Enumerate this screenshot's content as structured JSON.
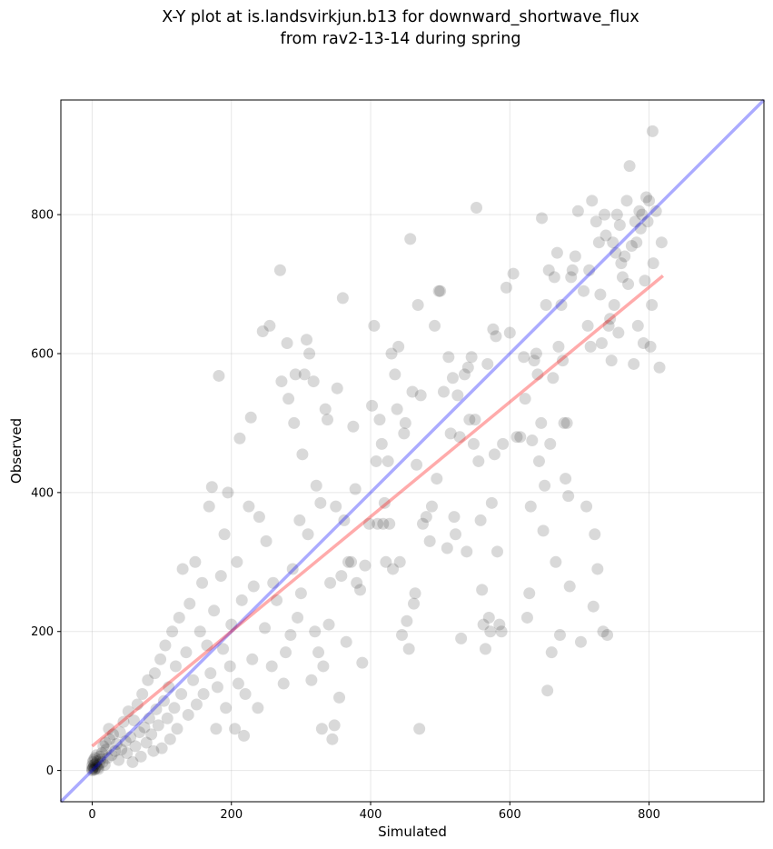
{
  "chart_data": {
    "type": "scatter",
    "title_line1": "X-Y plot at is.landsvirkjun.b13 for downward_shortwave_flux",
    "title_line2": "from rav2-13-14 during spring",
    "xlabel": "Simulated",
    "ylabel": "Observed",
    "xlim": [
      -45,
      965
    ],
    "ylim": [
      -45,
      965
    ],
    "xticks": [
      0,
      200,
      400,
      600,
      800
    ],
    "yticks": [
      0,
      200,
      400,
      600,
      800
    ],
    "grid": true,
    "identity_line": {
      "label": "1:1",
      "color": "#0000ff",
      "opacity": 0.33
    },
    "fit_line": {
      "color": "#ff0000",
      "opacity": 0.33,
      "x": [
        0,
        820
      ],
      "y": [
        35,
        712
      ]
    },
    "point_color": "#000000",
    "point_opacity": 0.15,
    "points": [
      [
        0,
        0
      ],
      [
        1,
        3
      ],
      [
        2,
        5
      ],
      [
        0,
        2
      ],
      [
        3,
        8
      ],
      [
        4,
        2
      ],
      [
        5,
        10
      ],
      [
        1,
        12
      ],
      [
        6,
        6
      ],
      [
        2,
        15
      ],
      [
        8,
        4
      ],
      [
        0,
        7
      ],
      [
        3,
        1
      ],
      [
        7,
        13
      ],
      [
        10,
        9
      ],
      [
        12,
        16
      ],
      [
        4,
        18
      ],
      [
        6,
        22
      ],
      [
        9,
        2
      ],
      [
        15,
        12
      ],
      [
        14,
        25
      ],
      [
        18,
        8
      ],
      [
        20,
        30
      ],
      [
        11,
        20
      ],
      [
        16,
        35
      ],
      [
        22,
        18
      ],
      [
        25,
        45
      ],
      [
        19,
        40
      ],
      [
        28,
        22
      ],
      [
        30,
        52
      ],
      [
        24,
        60
      ],
      [
        33,
        28
      ],
      [
        35,
        38
      ],
      [
        38,
        15
      ],
      [
        40,
        55
      ],
      [
        42,
        30
      ],
      [
        45,
        70
      ],
      [
        48,
        42
      ],
      [
        50,
        25
      ],
      [
        52,
        85
      ],
      [
        55,
        48
      ],
      [
        58,
        12
      ],
      [
        60,
        72
      ],
      [
        62,
        35
      ],
      [
        65,
        95
      ],
      [
        68,
        55
      ],
      [
        70,
        20
      ],
      [
        72,
        110
      ],
      [
        75,
        62
      ],
      [
        78,
        40
      ],
      [
        80,
        130
      ],
      [
        82,
        75
      ],
      [
        85,
        52
      ],
      [
        88,
        28
      ],
      [
        90,
        140
      ],
      [
        92,
        88
      ],
      [
        95,
        65
      ],
      [
        98,
        160
      ],
      [
        100,
        32
      ],
      [
        103,
        100
      ],
      [
        105,
        180
      ],
      [
        108,
        75
      ],
      [
        110,
        120
      ],
      [
        112,
        45
      ],
      [
        115,
        200
      ],
      [
        118,
        90
      ],
      [
        120,
        150
      ],
      [
        122,
        60
      ],
      [
        125,
        220
      ],
      [
        128,
        110
      ],
      [
        130,
        290
      ],
      [
        135,
        170
      ],
      [
        138,
        80
      ],
      [
        140,
        240
      ],
      [
        145,
        130
      ],
      [
        148,
        300
      ],
      [
        150,
        95
      ],
      [
        155,
        200
      ],
      [
        158,
        270
      ],
      [
        160,
        110
      ],
      [
        165,
        180
      ],
      [
        168,
        380
      ],
      [
        170,
        140
      ],
      [
        172,
        408
      ],
      [
        175,
        230
      ],
      [
        178,
        60
      ],
      [
        180,
        120
      ],
      [
        182,
        568
      ],
      [
        185,
        280
      ],
      [
        188,
        175
      ],
      [
        190,
        340
      ],
      [
        192,
        90
      ],
      [
        195,
        400
      ],
      [
        198,
        150
      ],
      [
        200,
        210
      ],
      [
        205,
        60
      ],
      [
        208,
        300
      ],
      [
        210,
        125
      ],
      [
        212,
        478
      ],
      [
        215,
        245
      ],
      [
        218,
        50
      ],
      [
        220,
        110
      ],
      [
        225,
        380
      ],
      [
        228,
        508
      ],
      [
        230,
        160
      ],
      [
        232,
        265
      ],
      [
        238,
        90
      ],
      [
        240,
        365
      ],
      [
        245,
        632
      ],
      [
        248,
        205
      ],
      [
        250,
        330
      ],
      [
        255,
        640
      ],
      [
        258,
        150
      ],
      [
        260,
        270
      ],
      [
        265,
        245
      ],
      [
        270,
        720
      ],
      [
        272,
        560
      ],
      [
        275,
        125
      ],
      [
        278,
        170
      ],
      [
        280,
        615
      ],
      [
        282,
        535
      ],
      [
        285,
        195
      ],
      [
        288,
        290
      ],
      [
        290,
        500
      ],
      [
        292,
        570
      ],
      [
        295,
        220
      ],
      [
        298,
        360
      ],
      [
        300,
        255
      ],
      [
        302,
        455
      ],
      [
        305,
        570
      ],
      [
        308,
        620
      ],
      [
        310,
        340
      ],
      [
        312,
        600
      ],
      [
        315,
        130
      ],
      [
        318,
        560
      ],
      [
        320,
        200
      ],
      [
        322,
        410
      ],
      [
        325,
        170
      ],
      [
        328,
        385
      ],
      [
        330,
        60
      ],
      [
        332,
        150
      ],
      [
        335,
        520
      ],
      [
        338,
        505
      ],
      [
        340,
        210
      ],
      [
        342,
        270
      ],
      [
        345,
        45
      ],
      [
        348,
        65
      ],
      [
        350,
        380
      ],
      [
        352,
        550
      ],
      [
        355,
        105
      ],
      [
        358,
        280
      ],
      [
        360,
        680
      ],
      [
        362,
        360
      ],
      [
        365,
        185
      ],
      [
        368,
        300
      ],
      [
        372,
        300
      ],
      [
        375,
        495
      ],
      [
        378,
        405
      ],
      [
        380,
        270
      ],
      [
        385,
        260
      ],
      [
        388,
        155
      ],
      [
        392,
        295
      ],
      [
        398,
        355
      ],
      [
        402,
        525
      ],
      [
        405,
        640
      ],
      [
        408,
        445
      ],
      [
        410,
        355
      ],
      [
        413,
        505
      ],
      [
        416,
        470
      ],
      [
        418,
        355
      ],
      [
        420,
        385
      ],
      [
        422,
        300
      ],
      [
        425,
        445
      ],
      [
        427,
        355
      ],
      [
        430,
        600
      ],
      [
        432,
        290
      ],
      [
        435,
        570
      ],
      [
        438,
        520
      ],
      [
        440,
        610
      ],
      [
        442,
        300
      ],
      [
        445,
        195
      ],
      [
        448,
        485
      ],
      [
        450,
        500
      ],
      [
        452,
        215
      ],
      [
        455,
        175
      ],
      [
        457,
        765
      ],
      [
        460,
        545
      ],
      [
        462,
        240
      ],
      [
        464,
        255
      ],
      [
        466,
        440
      ],
      [
        468,
        670
      ],
      [
        470,
        60
      ],
      [
        472,
        540
      ],
      [
        475,
        355
      ],
      [
        480,
        365
      ],
      [
        485,
        330
      ],
      [
        488,
        380
      ],
      [
        492,
        640
      ],
      [
        495,
        420
      ],
      [
        498,
        690
      ],
      [
        500,
        690
      ],
      [
        505,
        545
      ],
      [
        510,
        320
      ],
      [
        512,
        595
      ],
      [
        515,
        485
      ],
      [
        518,
        565
      ],
      [
        520,
        365
      ],
      [
        522,
        340
      ],
      [
        525,
        540
      ],
      [
        528,
        480
      ],
      [
        530,
        190
      ],
      [
        535,
        570
      ],
      [
        538,
        315
      ],
      [
        540,
        580
      ],
      [
        542,
        505
      ],
      [
        545,
        595
      ],
      [
        548,
        470
      ],
      [
        550,
        505
      ],
      [
        552,
        810
      ],
      [
        555,
        445
      ],
      [
        558,
        360
      ],
      [
        560,
        260
      ],
      [
        562,
        210
      ],
      [
        565,
        175
      ],
      [
        568,
        585
      ],
      [
        570,
        220
      ],
      [
        572,
        200
      ],
      [
        574,
        385
      ],
      [
        576,
        635
      ],
      [
        578,
        455
      ],
      [
        580,
        625
      ],
      [
        582,
        315
      ],
      [
        585,
        210
      ],
      [
        588,
        200
      ],
      [
        590,
        470
      ],
      [
        595,
        695
      ],
      [
        600,
        630
      ],
      [
        605,
        715
      ],
      [
        610,
        480
      ],
      [
        615,
        480
      ],
      [
        620,
        595
      ],
      [
        622,
        535
      ],
      [
        625,
        220
      ],
      [
        628,
        255
      ],
      [
        630,
        380
      ],
      [
        632,
        475
      ],
      [
        635,
        590
      ],
      [
        638,
        600
      ],
      [
        640,
        570
      ],
      [
        642,
        445
      ],
      [
        645,
        500
      ],
      [
        646,
        795
      ],
      [
        648,
        345
      ],
      [
        650,
        410
      ],
      [
        652,
        670
      ],
      [
        654,
        115
      ],
      [
        656,
        720
      ],
      [
        658,
        470
      ],
      [
        660,
        170
      ],
      [
        662,
        565
      ],
      [
        664,
        710
      ],
      [
        666,
        300
      ],
      [
        668,
        745
      ],
      [
        670,
        610
      ],
      [
        672,
        195
      ],
      [
        674,
        670
      ],
      [
        676,
        590
      ],
      [
        678,
        500
      ],
      [
        680,
        420
      ],
      [
        682,
        500
      ],
      [
        684,
        395
      ],
      [
        686,
        265
      ],
      [
        688,
        710
      ],
      [
        690,
        720
      ],
      [
        694,
        740
      ],
      [
        698,
        805
      ],
      [
        702,
        185
      ],
      [
        706,
        690
      ],
      [
        710,
        380
      ],
      [
        712,
        640
      ],
      [
        714,
        720
      ],
      [
        716,
        610
      ],
      [
        718,
        820
      ],
      [
        720,
        236
      ],
      [
        722,
        340
      ],
      [
        724,
        790
      ],
      [
        726,
        290
      ],
      [
        728,
        760
      ],
      [
        730,
        685
      ],
      [
        732,
        615
      ],
      [
        734,
        200
      ],
      [
        736,
        800
      ],
      [
        738,
        770
      ],
      [
        740,
        195
      ],
      [
        742,
        640
      ],
      [
        744,
        650
      ],
      [
        746,
        590
      ],
      [
        748,
        760
      ],
      [
        750,
        670
      ],
      [
        752,
        745
      ],
      [
        754,
        800
      ],
      [
        756,
        630
      ],
      [
        758,
        785
      ],
      [
        760,
        730
      ],
      [
        762,
        710
      ],
      [
        765,
        740
      ],
      [
        768,
        820
      ],
      [
        770,
        700
      ],
      [
        772,
        870
      ],
      [
        775,
        755
      ],
      [
        778,
        585
      ],
      [
        780,
        790
      ],
      [
        782,
        760
      ],
      [
        784,
        640
      ],
      [
        786,
        805
      ],
      [
        788,
        780
      ],
      [
        790,
        800
      ],
      [
        792,
        615
      ],
      [
        794,
        705
      ],
      [
        796,
        825
      ],
      [
        798,
        790
      ],
      [
        800,
        820
      ],
      [
        802,
        610
      ],
      [
        804,
        670
      ],
      [
        805,
        920
      ],
      [
        806,
        730
      ],
      [
        810,
        805
      ],
      [
        815,
        580
      ],
      [
        818,
        760
      ]
    ]
  }
}
